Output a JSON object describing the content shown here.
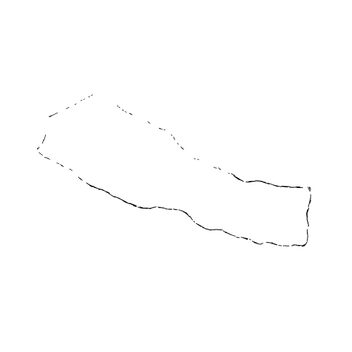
{
  "map": {
    "subject": "Nepal",
    "background_color": "#ffffff",
    "border_color": "#000000",
    "fill_color": "#ffffff",
    "style": "sparse dotted outline"
  }
}
